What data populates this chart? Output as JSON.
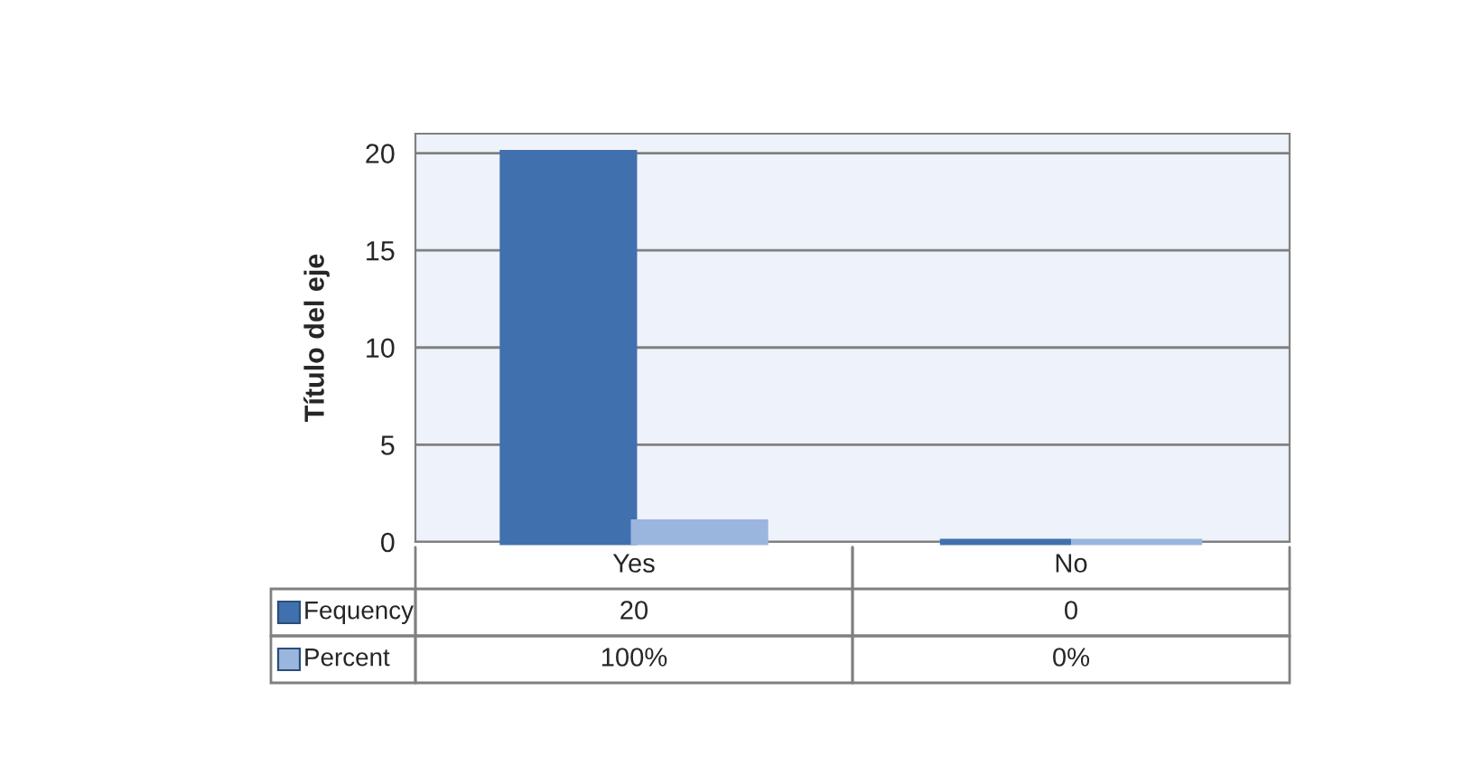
{
  "chart_data": {
    "type": "bar",
    "ylabel": "Título del eje",
    "categories": [
      "Yes",
      "No"
    ],
    "series": [
      {
        "name": "Fequency",
        "color": "#4170ae",
        "values": [
          20,
          0
        ],
        "value_labels": [
          "20",
          "0"
        ]
      },
      {
        "name": "Percent",
        "color": "#9bb6de",
        "values": [
          1,
          0
        ],
        "value_labels": [
          "100%",
          "0%"
        ]
      }
    ],
    "ylim": [
      0,
      21
    ],
    "yticks": [
      0,
      5,
      10,
      15,
      20
    ],
    "grid": "y",
    "legend": "bottom"
  }
}
